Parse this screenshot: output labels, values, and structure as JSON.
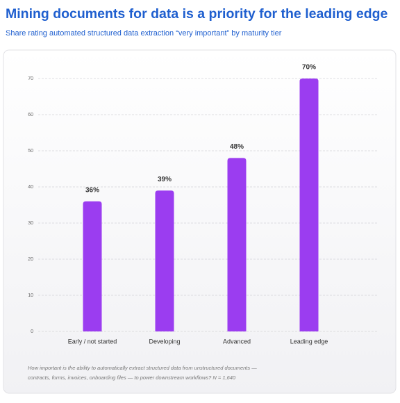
{
  "chart_data": {
    "type": "bar",
    "title": "Mining documents for data is a priority for the leading edge",
    "subtitle": "Share rating automated structured data extraction “very important” by maturity tier",
    "categories": [
      "Early / not started",
      "Developing",
      "Advanced",
      "Leading edge"
    ],
    "values": [
      36,
      39,
      48,
      70
    ],
    "value_labels": [
      "36%",
      "39%",
      "48%",
      "70%"
    ],
    "color": "#9b3df0",
    "ylim": [
      0,
      70
    ],
    "yticks": [
      0,
      10,
      20,
      30,
      40,
      50,
      60,
      70
    ],
    "grid": true,
    "footnote": [
      "How important is the ability to automatically extract structured data from unstructured documents —",
      "contracts, forms, invoices, onboarding files — to power downstream workflows? N = 1,640"
    ]
  }
}
